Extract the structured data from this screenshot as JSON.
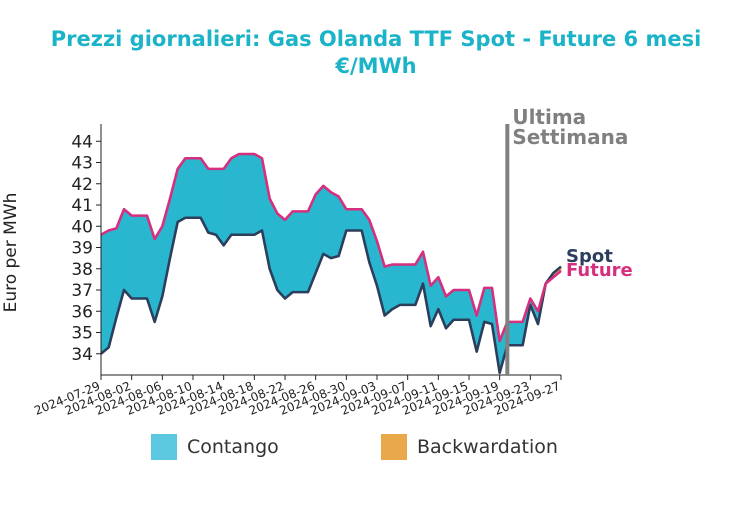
{
  "chart_data": {
    "type": "area",
    "title": "Prezzi giornalieri: Gas Olanda TTF Spot - Future 6 mesi",
    "subtitle": "€/MWh",
    "ylabel": "Euro per MWh",
    "xlabel": "",
    "ylim": [
      33,
      45
    ],
    "yticks": [
      34,
      35,
      36,
      37,
      38,
      39,
      40,
      41,
      42,
      43,
      44
    ],
    "xlim": [
      "2024-07-29",
      "2024-09-27"
    ],
    "xticks": [
      "2024-07-29",
      "2024-08-02",
      "2024-08-06",
      "2024-08-10",
      "2024-08-14",
      "2024-08-18",
      "2024-08-22",
      "2024-08-26",
      "2024-08-30",
      "2024-09-03",
      "2024-09-07",
      "2024-09-11",
      "2024-09-15",
      "2024-09-19",
      "2024-09-23",
      "2024-09-27"
    ],
    "x": [
      "2024-07-29",
      "2024-07-30",
      "2024-07-31",
      "2024-08-01",
      "2024-08-02",
      "2024-08-03",
      "2024-08-04",
      "2024-08-05",
      "2024-08-06",
      "2024-08-07",
      "2024-08-08",
      "2024-08-09",
      "2024-08-10",
      "2024-08-11",
      "2024-08-12",
      "2024-08-13",
      "2024-08-14",
      "2024-08-15",
      "2024-08-16",
      "2024-08-17",
      "2024-08-18",
      "2024-08-19",
      "2024-08-20",
      "2024-08-21",
      "2024-08-22",
      "2024-08-23",
      "2024-08-24",
      "2024-08-25",
      "2024-08-26",
      "2024-08-27",
      "2024-08-28",
      "2024-08-29",
      "2024-08-30",
      "2024-08-31",
      "2024-09-01",
      "2024-09-02",
      "2024-09-03",
      "2024-09-04",
      "2024-09-05",
      "2024-09-06",
      "2024-09-07",
      "2024-09-08",
      "2024-09-09",
      "2024-09-10",
      "2024-09-11",
      "2024-09-12",
      "2024-09-13",
      "2024-09-14",
      "2024-09-15",
      "2024-09-16",
      "2024-09-17",
      "2024-09-18",
      "2024-09-19",
      "2024-09-20",
      "2024-09-21",
      "2024-09-22",
      "2024-09-23",
      "2024-09-24",
      "2024-09-25",
      "2024-09-26",
      "2024-09-27"
    ],
    "series": [
      {
        "name": "Spot",
        "color": "#2b3f5c",
        "values": [
          34.0,
          34.3,
          35.7,
          37.0,
          36.6,
          36.6,
          36.6,
          35.5,
          36.7,
          38.5,
          40.2,
          40.4,
          40.4,
          40.4,
          39.7,
          39.6,
          39.1,
          39.6,
          39.6,
          39.6,
          39.6,
          39.8,
          38.0,
          37.0,
          36.6,
          36.9,
          36.9,
          36.9,
          37.8,
          38.7,
          38.5,
          38.6,
          39.8,
          39.8,
          39.8,
          38.3,
          37.2,
          35.8,
          36.1,
          36.3,
          36.3,
          36.3,
          37.3,
          35.3,
          36.1,
          35.2,
          35.6,
          35.6,
          35.6,
          34.1,
          35.5,
          35.4,
          33.1,
          34.4,
          34.4,
          34.4,
          36.3,
          35.4,
          37.3,
          37.8,
          38.1
        ]
      },
      {
        "name": "Future",
        "color": "#d62f7e",
        "values": [
          39.6,
          39.8,
          39.9,
          40.8,
          40.5,
          40.5,
          40.5,
          39.4,
          40.0,
          41.3,
          42.7,
          43.2,
          43.2,
          43.2,
          42.7,
          42.7,
          42.7,
          43.2,
          43.4,
          43.4,
          43.4,
          43.2,
          41.3,
          40.6,
          40.3,
          40.7,
          40.7,
          40.7,
          41.5,
          41.9,
          41.6,
          41.4,
          40.8,
          40.8,
          40.8,
          40.3,
          39.3,
          38.1,
          38.2,
          38.2,
          38.2,
          38.2,
          38.8,
          37.2,
          37.6,
          36.7,
          37.0,
          37.0,
          37.0,
          35.8,
          37.1,
          37.1,
          34.6,
          35.5,
          35.5,
          35.5,
          36.6,
          36.0,
          37.3,
          37.6,
          37.9
        ]
      }
    ],
    "legend": [
      {
        "label": "Contango",
        "color": "#5bc8e0"
      },
      {
        "label": "Backwardation",
        "color": "#e9a94b"
      }
    ],
    "fill_colors": {
      "contango": "#29b7d0",
      "backwardation": "#e9a94b"
    },
    "annotations": {
      "marker_date": "2024-09-20",
      "marker_label_line1": "Ultima",
      "marker_label_line2": "Settimana",
      "marker_color": "#808080",
      "spot_label": "Spot",
      "future_label": "Future"
    },
    "grid": false
  }
}
